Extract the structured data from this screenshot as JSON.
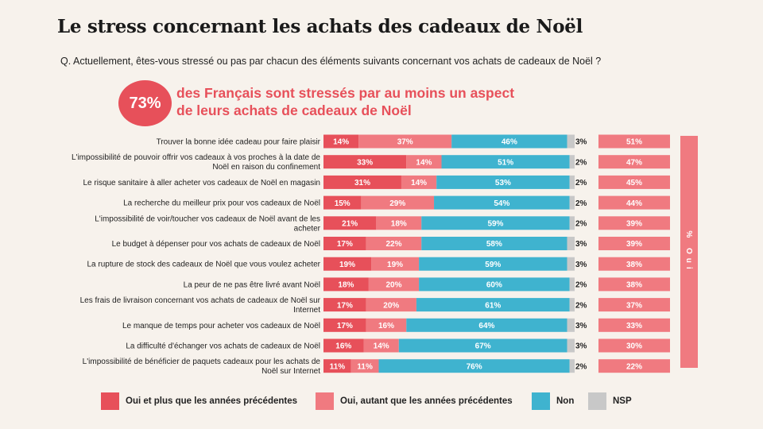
{
  "title": "Le stress concernant les achats des cadeaux de Noël",
  "question": "Q. Actuellement, êtes-vous stressé ou pas par chacun des éléments suivants concernant vos achats de cadeaux de Noël ?",
  "highlight": {
    "value": "73%",
    "line1": "des Français sont stressés par au moins un aspect",
    "line2": "de leurs achats de cadeaux de Noël"
  },
  "colors": {
    "oui_plus": "#e7505a",
    "oui_autant": "#f07a80",
    "non": "#3fb3cf",
    "nsp": "#c8c8c8",
    "total_oui": "#f07a80"
  },
  "chart_data": {
    "type": "bar",
    "stacked": true,
    "orientation": "horizontal",
    "unit": "%",
    "categories": [
      [
        "Trouver la bonne idée cadeau pour faire plaisir"
      ],
      [
        "L'impossibilité de pouvoir offrir vos cadeaux à vos proches à la date de",
        "Noël en raison du confinement"
      ],
      [
        "Le risque sanitaire à aller acheter vos cadeaux de Noël en magasin"
      ],
      [
        "La recherche du meilleur prix pour vos cadeaux de Noël"
      ],
      [
        "L'impossibilité de voir/toucher vos cadeaux de Noël avant de les",
        "acheter"
      ],
      [
        "Le budget à dépenser pour vos achats de cadeaux de Noël"
      ],
      [
        "La rupture de stock des cadeaux de Noël que vous voulez acheter"
      ],
      [
        "La peur de ne pas être livré avant Noël"
      ],
      [
        "Les frais de livraison concernant vos achats de cadeaux de Noël sur",
        "Internet"
      ],
      [
        "Le manque de temps pour acheter vos cadeaux de Noël"
      ],
      [
        "La difficulté d'échanger vos achats de cadeaux de Noël"
      ],
      [
        "L'impossibilité de bénéficier de paquets cadeaux pour les achats de",
        "Noël sur Internet"
      ]
    ],
    "series": [
      {
        "name": "Oui et plus que les années précédentes",
        "values": [
          14,
          33,
          31,
          15,
          21,
          17,
          19,
          18,
          17,
          17,
          16,
          11
        ]
      },
      {
        "name": "Oui, autant que les années précédentes",
        "values": [
          37,
          14,
          14,
          29,
          18,
          22,
          19,
          20,
          20,
          16,
          14,
          11
        ]
      },
      {
        "name": "Non",
        "values": [
          46,
          51,
          53,
          54,
          59,
          58,
          59,
          60,
          61,
          64,
          67,
          76
        ]
      },
      {
        "name": "NSP",
        "values": [
          3,
          2,
          2,
          2,
          2,
          3,
          3,
          2,
          2,
          3,
          3,
          2
        ]
      }
    ],
    "total_oui": {
      "label": "% Oui",
      "values": [
        51,
        47,
        45,
        44,
        39,
        39,
        38,
        38,
        37,
        33,
        30,
        22
      ]
    },
    "xlim": [
      0,
      100
    ],
    "legend_position": "bottom"
  }
}
